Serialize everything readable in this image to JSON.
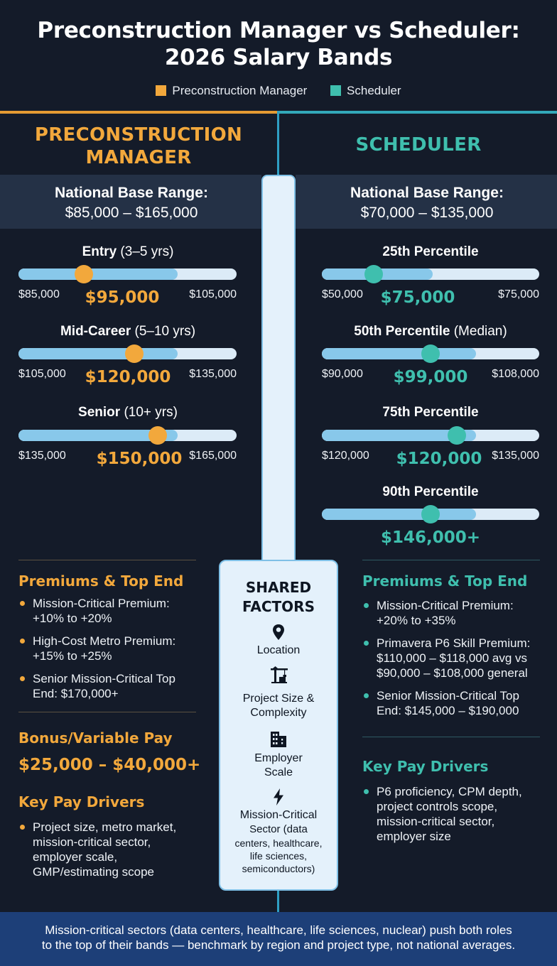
{
  "title_line1": "Preconstruction Manager vs Scheduler:",
  "title_line2": "2026 Salary Bands",
  "colors": {
    "orange": "#f2a83c",
    "teal": "#3fbfae",
    "bar_fill": "#88c8ea",
    "bar_track": "#dcebf7",
    "background": "#141b29",
    "footer": "#1d3f78"
  },
  "legend": [
    {
      "label": "Preconstruction Manager"
    },
    {
      "label": "Scheduler"
    }
  ],
  "left": {
    "title_line1": "PRECONSTRUCTION",
    "title_line2": "MANAGER",
    "range_label": "National Base Range:",
    "range_value": "$85,000 – $165,000",
    "tiers": [
      {
        "label_bold": "Entry",
        "label_rest": " (3–5 yrs)",
        "low": "$85,000",
        "value": "$95,000",
        "high": "$105,000",
        "marker_level": 0.3,
        "fill_fraction": 0.73
      },
      {
        "label_bold": "Mid-Career",
        "label_rest": " (5–10 yrs)",
        "low": "$105,000",
        "value": "$120,000",
        "high": "$135,000",
        "marker_level": 0.53,
        "fill_fraction": 0.73
      },
      {
        "label_bold": "Senior",
        "label_rest": " (10+ yrs)",
        "low": "$135,000",
        "value": "$150,000",
        "high": "$165,000",
        "marker_level": 0.64,
        "fill_fraction": 0.73
      }
    ],
    "premiums": {
      "heading": "Premiums & Top End",
      "items": [
        {
          "line1": "Mission-Critical Premium:",
          "line2": "+10% to +20%"
        },
        {
          "line1": "High-Cost Metro Premium:",
          "line2": "+15% to +25%"
        },
        {
          "line1": "Senior Mission-Critical Top",
          "line2": "End: $170,000+"
        }
      ]
    },
    "bonus": {
      "heading": "Bonus/Variable Pay",
      "value": "$25,000 – $40,000+"
    },
    "drivers": {
      "heading": "Key Pay Drivers",
      "lines": [
        "Project size, metro market,",
        "mission-critical sector,",
        "employer scale,",
        "GMP/estimating scope"
      ]
    }
  },
  "right": {
    "title": "SCHEDULER",
    "range_label": "National Base Range:",
    "range_value": "$70,000 – $135,000",
    "tiers": [
      {
        "label_bold": "25th Percentile",
        "label_rest": "",
        "low": "$50,000",
        "value": "$75,000",
        "high": "$75,000",
        "marker_level": 0.24,
        "fill_fraction": 0.51
      },
      {
        "label_bold": "50th Percentile",
        "label_rest": " (Median)",
        "low": "$90,000",
        "value": "$99,000",
        "high": "$108,000",
        "marker_level": 0.5,
        "fill_fraction": 0.71
      },
      {
        "label_bold": "75th Percentile",
        "label_rest": "",
        "low": "$120,000",
        "value": "$120,000",
        "high": "$135,000",
        "marker_level": 0.62,
        "fill_fraction": 0.71
      },
      {
        "label_bold": "90th Percentile",
        "label_rest": "",
        "low": "",
        "value": "$146,000+",
        "high": "",
        "marker_level": 0.5,
        "fill_fraction": 0.71
      }
    ],
    "premiums": {
      "heading": "Premiums & Top End",
      "items": [
        {
          "lines": [
            "Mission-Critical Premium:",
            "+20% to +35%"
          ]
        },
        {
          "lines": [
            "Primavera P6 Skill Premium:",
            "$110,000 – $118,000 avg vs",
            "$90,000 – $108,000 general"
          ]
        },
        {
          "lines": [
            "Senior Mission-Critical Top",
            "End: $145,000 – $190,000"
          ]
        }
      ]
    },
    "drivers": {
      "heading": "Key Pay Drivers",
      "lines": [
        "P6 proficiency, CPM depth,",
        "project controls scope,",
        "mission-critical sector,",
        "employer size"
      ]
    }
  },
  "shared": {
    "title_line1": "SHARED",
    "title_line2": "FACTORS",
    "factors": [
      {
        "icon": "location-pin-icon",
        "lines": [
          "Location"
        ]
      },
      {
        "icon": "crane-icon",
        "lines": [
          "Project Size &",
          "Complexity"
        ]
      },
      {
        "icon": "building-icon",
        "lines": [
          "Employer",
          "Scale"
        ]
      },
      {
        "icon": "lightning-bolt-icon",
        "lines": [
          "Mission-Critical",
          "Sector (data",
          "centers, healthcare,",
          "life sciences,",
          "semiconductors)"
        ]
      }
    ]
  },
  "footer": {
    "line1": "Mission-critical sectors (data centers, healthcare, life sciences, nuclear) push both roles",
    "line2": "to the top of their bands — benchmark by region and project type, not national averages."
  }
}
